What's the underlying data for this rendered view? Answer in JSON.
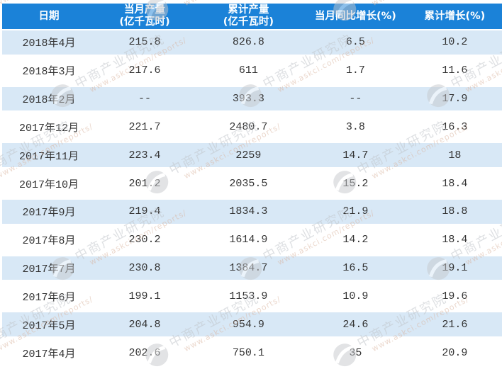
{
  "chart_data": {
    "type": "table",
    "columns": [
      {
        "key": "date",
        "label": "日期"
      },
      {
        "key": "monthly_output",
        "label": "当月产量\n(亿千瓦时)"
      },
      {
        "key": "cumulative_output",
        "label": "累计产量\n(亿千瓦时)"
      },
      {
        "key": "monthly_yoy_growth",
        "label": "当月同比增长(%)"
      },
      {
        "key": "cumulative_growth",
        "label": "累计增长(%)"
      }
    ],
    "rows": [
      [
        "2018年4月",
        "215.8",
        "826.8",
        "6.5",
        "10.2"
      ],
      [
        "2018年3月",
        "217.6",
        "611",
        "1.7",
        "11.6"
      ],
      [
        "2018年2月",
        "--",
        "393.3",
        "--",
        "17.9"
      ],
      [
        "2017年12月",
        "221.7",
        "2480.7",
        "3.8",
        "16.3"
      ],
      [
        "2017年11月",
        "223.4",
        "2259",
        "14.7",
        "18"
      ],
      [
        "2017年10月",
        "201.2",
        "2035.5",
        "15.2",
        "18.4"
      ],
      [
        "2017年9月",
        "219.4",
        "1834.3",
        "21.9",
        "18.8"
      ],
      [
        "2017年8月",
        "230.2",
        "1614.9",
        "14.2",
        "18.4"
      ],
      [
        "2017年7月",
        "230.8",
        "1384.7",
        "16.5",
        "19.1"
      ],
      [
        "2017年6月",
        "199.1",
        "1153.9",
        "10.9",
        "19.6"
      ],
      [
        "2017年5月",
        "204.8",
        "954.9",
        "24.6",
        "21.6"
      ],
      [
        "2017年4月",
        "202.6",
        "750.1",
        "35",
        "20.9"
      ]
    ]
  },
  "watermark": {
    "brand": "中商产业研究院",
    "url": "www.askci.com/reports/",
    "logo_icon": "askci-logo-icon"
  },
  "colors": {
    "header_bg": "#1b82d8",
    "row_alt_bg": "#d8e8f6",
    "header_text": "#ffffff",
    "body_text": "#333333",
    "watermark_gray": "#bfc3c8",
    "watermark_url": "#d8b29c"
  }
}
